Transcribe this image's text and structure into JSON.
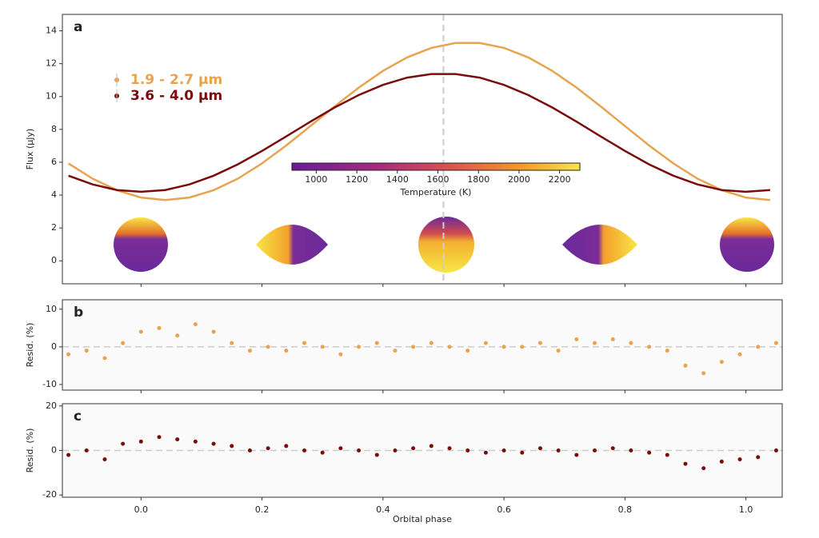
{
  "chart_data": [
    {
      "type": "line",
      "panel_label": "a",
      "ylabel": "Flux (μJy)",
      "x": [
        -0.12,
        -0.08,
        -0.04,
        0,
        0.04,
        0.08,
        0.12,
        0.16,
        0.2,
        0.24,
        0.28,
        0.32,
        0.36,
        0.4,
        0.44,
        0.48,
        0.52,
        0.56,
        0.6,
        0.64,
        0.68,
        0.72,
        0.76,
        0.8,
        0.84,
        0.88,
        0.92,
        0.96,
        1.0,
        1.04
      ],
      "series": [
        {
          "name": "1.9 - 2.7 μm",
          "color": "#e8a34f",
          "values": [
            5.93,
            5.0,
            4.3,
            3.85,
            3.7,
            3.85,
            4.3,
            5.0,
            5.93,
            7.02,
            8.2,
            9.4,
            10.54,
            11.56,
            12.38,
            12.96,
            13.26,
            13.26,
            12.96,
            12.38,
            11.56,
            10.54,
            9.4,
            8.2,
            7.02,
            5.93,
            5.0,
            4.3,
            3.85,
            3.7
          ]
        },
        {
          "name": "3.6 - 4.0 μm",
          "color": "#7a0c0c",
          "values": [
            5.18,
            4.65,
            4.31,
            4.2,
            4.31,
            4.65,
            5.18,
            5.87,
            6.69,
            7.57,
            8.47,
            9.33,
            10.09,
            10.71,
            11.15,
            11.37,
            11.37,
            11.15,
            10.71,
            10.09,
            9.33,
            8.47,
            7.57,
            6.69,
            5.87,
            5.18,
            4.65,
            4.31,
            4.2,
            4.31
          ]
        }
      ],
      "xlim": [
        -0.13,
        1.06
      ],
      "ylim": [
        -1.4,
        15
      ],
      "yticks": [
        0,
        2,
        4,
        6,
        8,
        10,
        12,
        14
      ],
      "vline": 0.5,
      "colorbar": {
        "label": "Temperature (K)",
        "lim": [
          880,
          2300
        ],
        "ticks": [
          1000,
          1200,
          1400,
          1600,
          1800,
          2000,
          2200
        ]
      }
    },
    {
      "type": "scatter",
      "panel_label": "b",
      "ylabel": "Resid. (%)",
      "color": "#e8a34f",
      "x": [
        -0.12,
        -0.09,
        -0.06,
        -0.03,
        0,
        0.03,
        0.06,
        0.09,
        0.12,
        0.15,
        0.18,
        0.21,
        0.24,
        0.27,
        0.3,
        0.33,
        0.36,
        0.39,
        0.42,
        0.45,
        0.48,
        0.51,
        0.54,
        0.57,
        0.6,
        0.63,
        0.66,
        0.69,
        0.72,
        0.75,
        0.78,
        0.81,
        0.84,
        0.87,
        0.9,
        0.93,
        0.96,
        0.99,
        1.02,
        1.05
      ],
      "values": [
        -2,
        -1,
        -3,
        1,
        4,
        5,
        3,
        6,
        4,
        1,
        -1,
        0,
        -1,
        1,
        0,
        -2,
        0,
        1,
        -1,
        0,
        1,
        0,
        -1,
        1,
        0,
        0,
        1,
        -1,
        2,
        1,
        2,
        1,
        0,
        -1,
        -5,
        -7,
        -4,
        -2,
        0,
        1
      ],
      "xlim": [
        -0.13,
        1.06
      ],
      "ylim": [
        -11.5,
        12.5
      ],
      "yticks": [
        -10,
        0,
        10
      ],
      "hline": 0
    },
    {
      "type": "scatter",
      "panel_label": "c",
      "ylabel": "Resid. (%)",
      "xlabel": "Orbital phase",
      "color": "#7a0c0c",
      "x": [
        -0.12,
        -0.09,
        -0.06,
        -0.03,
        0,
        0.03,
        0.06,
        0.09,
        0.12,
        0.15,
        0.18,
        0.21,
        0.24,
        0.27,
        0.3,
        0.33,
        0.36,
        0.39,
        0.42,
        0.45,
        0.48,
        0.51,
        0.54,
        0.57,
        0.6,
        0.63,
        0.66,
        0.69,
        0.72,
        0.75,
        0.78,
        0.81,
        0.84,
        0.87,
        0.9,
        0.93,
        0.96,
        0.99,
        1.02,
        1.05
      ],
      "values": [
        -2,
        0,
        -4,
        3,
        4,
        6,
        5,
        4,
        3,
        2,
        0,
        1,
        2,
        0,
        -1,
        1,
        0,
        -2,
        0,
        1,
        2,
        1,
        0,
        -1,
        0,
        -1,
        1,
        0,
        -2,
        0,
        1,
        0,
        -1,
        -2,
        -6,
        -8,
        -5,
        -4,
        -3,
        0
      ],
      "xlim": [
        -0.13,
        1.06
      ],
      "ylim": [
        -21,
        21
      ],
      "yticks": [
        -20,
        0,
        20
      ],
      "hline": 0,
      "xticks": [
        {
          "value": 0,
          "label": "0.0"
        },
        0.2,
        0.4,
        0.6,
        0.8,
        {
          "value": 1,
          "label": "1.0"
        }
      ]
    }
  ]
}
